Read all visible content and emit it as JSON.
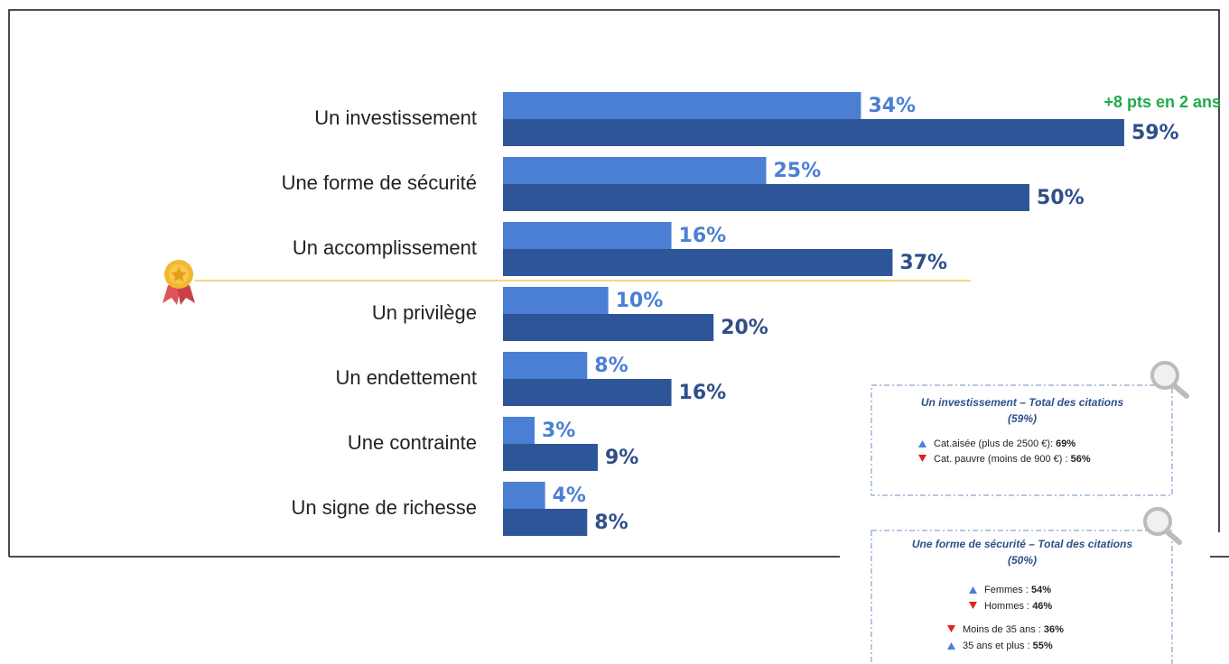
{
  "chart_data": {
    "type": "barh",
    "categories": [
      "Un investissement",
      "Une forme de sécurité",
      "Un accomplissement",
      "Un privilège",
      "Un endettement",
      "Une contrainte",
      "Un signe de richesse"
    ],
    "series": [
      {
        "color": "#4a7fd4",
        "values": [
          34,
          25,
          16,
          10,
          8,
          3,
          4
        ],
        "value_labels": [
          "34%",
          "25%",
          "16%",
          "10%",
          "8%",
          "3%",
          "4%"
        ]
      },
      {
        "color": "#2e5597",
        "values": [
          59,
          50,
          37,
          20,
          16,
          9,
          8
        ],
        "value_labels": [
          "59%",
          "50%",
          "37%",
          "20%",
          "16%",
          "9%",
          "8%"
        ]
      }
    ],
    "annotation": "+8 pts en 2 ans",
    "callouts": [
      {
        "title": "Un investissement – Total des citations",
        "subtitle": "(59%)",
        "items": [
          {
            "label": "Cat.aisée (plus de 2500 €): ",
            "value": "69%"
          },
          {
            "label": "Cat. pauvre (moins de 900 €) : ",
            "value": "56%"
          }
        ]
      },
      {
        "title": "Une forme de sécurité – Total des citations",
        "subtitle": "(50%)",
        "items": [
          {
            "label": "Femmes : ",
            "value": "54%"
          },
          {
            "label": "Hommes : ",
            "value": "46%"
          },
          {
            "label": "Moins de 35 ans : ",
            "value": "36%"
          },
          {
            "label": "35 ans et plus : ",
            "value": "55%"
          }
        ]
      }
    ]
  }
}
